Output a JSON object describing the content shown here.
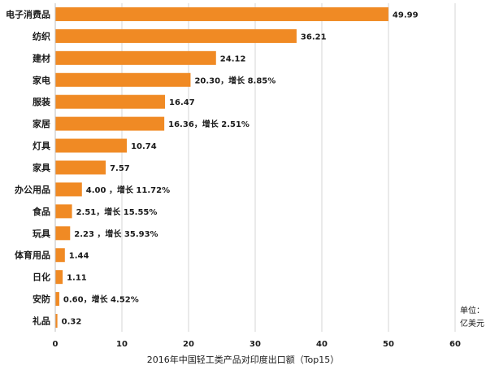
{
  "chart_data": {
    "type": "bar",
    "orientation": "horizontal",
    "caption": "2016年中国轻工类产品对印度出口额（Top15）",
    "unit_line1": "单位：",
    "unit_line2": "亿美元",
    "xlim": [
      0,
      60
    ],
    "xticks": [
      0,
      10,
      20,
      30,
      40,
      50,
      60
    ],
    "grid": true,
    "bar_color": "#F08A24",
    "categories": [
      "电子消费品",
      "纺织",
      "建材",
      "家电",
      "服装",
      "家居",
      "灯具",
      "家具",
      "办公用品",
      "食品",
      "玩具",
      "体育用品",
      "日化",
      "安防",
      "礼品"
    ],
    "values": [
      49.99,
      36.21,
      24.12,
      20.3,
      16.47,
      16.36,
      10.74,
      7.57,
      4.0,
      2.51,
      2.23,
      1.44,
      1.11,
      0.6,
      0.32
    ],
    "value_labels": [
      "49.99",
      "36.21",
      "24.12",
      "20.30，增长 8.85%",
      "16.47",
      "16.36，增长 2.51%",
      "10.74",
      "7.57",
      "4.00 ，增长 11.72%",
      "2.51，增长 15.55%",
      "2.23 ，增长 35.93%",
      "1.44",
      "1.11",
      "0.60，增长 4.52%",
      "0.32"
    ]
  }
}
